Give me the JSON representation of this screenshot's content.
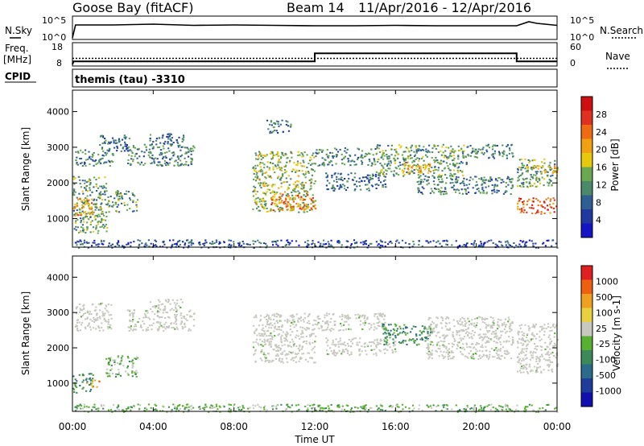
{
  "header": {
    "station": "Goose Bay (fitACF)",
    "beam": "Beam 14",
    "dates": "11/Apr/2016 - 12/Apr/2016"
  },
  "strip_labels": {
    "nsky": "N.Sky",
    "freq": "Freq.",
    "freq_unit": "[MHz]",
    "cpid": "CPID",
    "nsearch": "N.Search",
    "nave": "Nave",
    "cpid_value": "themis (tau) -3310"
  },
  "colors": {
    "power": [
      "#1515c8",
      "#1e3aa0",
      "#2e5e94",
      "#4a8a6a",
      "#6aa84f",
      "#e8c80a",
      "#f0a010",
      "#ef6a12",
      "#e03020",
      "#d01010"
    ],
    "velocity": [
      "#1010b0",
      "#1e3c9a",
      "#2a6a8a",
      "#3c8a5a",
      "#58b030",
      "#c8c8c0",
      "#e8d040",
      "#f0a020",
      "#ee6010",
      "#e02020"
    ],
    "ground_scatter": "#c8c8c0"
  },
  "chart_data": [
    {
      "type": "line",
      "panel": "noise",
      "x_unit": "hours UT",
      "left_axis": {
        "label": "N.Sky",
        "ticks": [
          "10^5",
          "10^0"
        ]
      },
      "right_axis": {
        "label": "N.Search",
        "ticks": [
          "10^5",
          "10^0"
        ]
      },
      "series": [
        {
          "name": "N.Sky",
          "x": [
            0,
            0.15,
            2,
            4,
            6,
            8,
            10,
            12,
            14,
            16,
            18,
            20,
            22,
            22.6,
            23,
            24
          ],
          "log10_y": [
            0,
            3.2,
            3.2,
            3.4,
            3.1,
            3.2,
            3.1,
            3.0,
            3.0,
            3.1,
            3.0,
            3.0,
            3.0,
            4.0,
            3.6,
            3.1
          ]
        }
      ]
    },
    {
      "type": "line",
      "panel": "freq-nave",
      "left_axis": {
        "label": "Freq. [MHz]",
        "ticks": [
          "18",
          "8"
        ],
        "range": [
          8,
          18
        ]
      },
      "right_axis": {
        "label": "Nave",
        "ticks": [
          "60",
          "0"
        ],
        "range": [
          0,
          60
        ]
      },
      "series": [
        {
          "name": "Freq.",
          "x": [
            0,
            0.05,
            12,
            12,
            22,
            22,
            24
          ],
          "y": [
            8,
            9.5,
            9.5,
            13.5,
            13.5,
            9.5,
            9.5
          ]
        },
        {
          "name": "Nave",
          "x": [
            0,
            24
          ],
          "y": [
            18,
            18
          ]
        }
      ]
    },
    {
      "type": "heatmap",
      "panel": "power",
      "ylabel": "Slant Range [km]",
      "y_ticks": [
        "4000",
        "3000",
        "2000",
        "1000"
      ],
      "ylim": [
        200,
        4600
      ],
      "x_ticks": [
        "00:00",
        "04:00",
        "08:00",
        "12:00",
        "16:00",
        "20:00",
        "00:00"
      ],
      "xlim": [
        0,
        24
      ],
      "colorbar": {
        "label": "Power [dB]",
        "ticks": [
          "28",
          "24",
          "20",
          "16",
          "12",
          "8",
          "4"
        ],
        "range": [
          0,
          30
        ]
      },
      "regions": [
        {
          "x": [
            0.0,
            1.7
          ],
          "y": [
            600,
            2200
          ],
          "level": 12
        },
        {
          "x": [
            0.0,
            1.0
          ],
          "y": [
            1100,
            1600
          ],
          "level": 20
        },
        {
          "x": [
            0.1,
            2.0
          ],
          "y": [
            2500,
            2950
          ],
          "level": 10
        },
        {
          "x": [
            1.7,
            3.2
          ],
          "y": [
            1200,
            1800
          ],
          "level": 12
        },
        {
          "x": [
            1.3,
            2.8
          ],
          "y": [
            2900,
            3400
          ],
          "level": 8
        },
        {
          "x": [
            2.7,
            6.0
          ],
          "y": [
            2500,
            3100
          ],
          "level": 10
        },
        {
          "x": [
            3.8,
            5.5
          ],
          "y": [
            3100,
            3400
          ],
          "level": 8
        },
        {
          "x": [
            8.9,
            12.0
          ],
          "y": [
            1200,
            2900
          ],
          "level": 14
        },
        {
          "x": [
            9.8,
            12.0
          ],
          "y": [
            1250,
            1700
          ],
          "level": 22
        },
        {
          "x": [
            9.6,
            10.8
          ],
          "y": [
            3400,
            3800
          ],
          "level": 8
        },
        {
          "x": [
            12.0,
            15.0
          ],
          "y": [
            2500,
            3000
          ],
          "level": 10
        },
        {
          "x": [
            12.5,
            15.5
          ],
          "y": [
            1800,
            2300
          ],
          "level": 8
        },
        {
          "x": [
            15.0,
            19.5
          ],
          "y": [
            2200,
            3100
          ],
          "level": 12
        },
        {
          "x": [
            16.3,
            17.8
          ],
          "y": [
            2300,
            2600
          ],
          "level": 18
        },
        {
          "x": [
            17.0,
            21.8
          ],
          "y": [
            1700,
            2200
          ],
          "level": 10
        },
        {
          "x": [
            19.5,
            21.8
          ],
          "y": [
            2700,
            3100
          ],
          "level": 10
        },
        {
          "x": [
            22.0,
            24.0
          ],
          "y": [
            1900,
            2700
          ],
          "level": 12
        },
        {
          "x": [
            22.0,
            24.0
          ],
          "y": [
            1150,
            1600
          ],
          "level": 24
        },
        {
          "x": [
            22.5,
            24.0
          ],
          "y": [
            2300,
            2500
          ],
          "level": 18
        },
        {
          "x": [
            0.0,
            24.0
          ],
          "y": [
            200,
            420
          ],
          "level": 6
        }
      ]
    },
    {
      "type": "heatmap",
      "panel": "velocity",
      "ylabel": "Slant Range [km]",
      "y_ticks": [
        "4000",
        "3000",
        "2000",
        "1000"
      ],
      "ylim": [
        200,
        4600
      ],
      "x_ticks": [
        "00:00",
        "04:00",
        "08:00",
        "12:00",
        "16:00",
        "20:00",
        "00:00"
      ],
      "xlim": [
        0,
        24
      ],
      "xlabel": "Time UT",
      "colorbar": {
        "label": "Velocity [m s-1]",
        "ticks": [
          "1000",
          "500",
          "100",
          "25",
          "-25",
          "-100",
          "-500",
          "-1000"
        ]
      },
      "regions": [
        {
          "x": [
            0.1,
            1.9
          ],
          "y": [
            2500,
            3300
          ],
          "level": 5
        },
        {
          "x": [
            2.7,
            6.0
          ],
          "y": [
            2500,
            3100
          ],
          "level": 5
        },
        {
          "x": [
            3.8,
            5.5
          ],
          "y": [
            3100,
            3400
          ],
          "level": 5
        },
        {
          "x": [
            1.6,
            3.2
          ],
          "y": [
            1200,
            1800
          ],
          "level": 4
        },
        {
          "x": [
            0.0,
            1.0
          ],
          "y": [
            750,
            1300
          ],
          "level": 3
        },
        {
          "x": [
            0.6,
            1.3
          ],
          "y": [
            850,
            1150
          ],
          "level": 7
        },
        {
          "x": [
            8.9,
            12.0
          ],
          "y": [
            1600,
            3000
          ],
          "level": 5
        },
        {
          "x": [
            12.0,
            15.5
          ],
          "y": [
            2500,
            3000
          ],
          "level": 5
        },
        {
          "x": [
            12.5,
            16.0
          ],
          "y": [
            1800,
            2300
          ],
          "level": 5
        },
        {
          "x": [
            15.3,
            17.8
          ],
          "y": [
            2100,
            2700
          ],
          "level": 3
        },
        {
          "x": [
            17.5,
            21.8
          ],
          "y": [
            1700,
            2900
          ],
          "level": 5
        },
        {
          "x": [
            22.0,
            24.0
          ],
          "y": [
            1300,
            2700
          ],
          "level": 5
        },
        {
          "x": [
            0.0,
            24.0
          ],
          "y": [
            200,
            420
          ],
          "level": 4
        }
      ]
    }
  ],
  "y_axis_label": "Slant Range [km]",
  "x_axis_label": "Time UT"
}
